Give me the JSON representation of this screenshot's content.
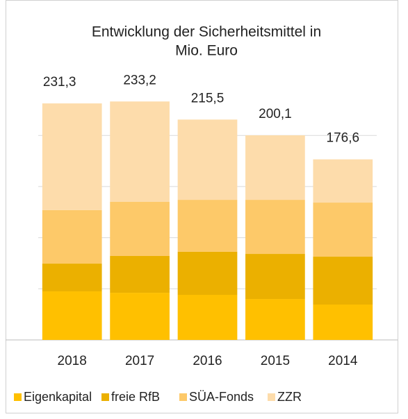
{
  "chart_data": {
    "type": "stacked_bar",
    "title": [
      "Entwicklung der Sicherheitsmittel in",
      "Mio. Euro"
    ],
    "categories": [
      "2018",
      "2017",
      "2016",
      "2015",
      "2014"
    ],
    "series": [
      {
        "name": "Eigenkapital",
        "color": "#ffc000",
        "values": [
          47.5,
          46.1,
          44.1,
          40.0,
          34.6
        ]
      },
      {
        "name": "freie RfB",
        "color": "#ebb000",
        "values": [
          27.1,
          36.0,
          42.1,
          44.1,
          46.8
        ]
      },
      {
        "name": "SÜA-Fonds",
        "color": "#fdc969",
        "values": [
          52.3,
          52.9,
          50.8,
          52.9,
          52.9
        ]
      },
      {
        "name": "ZZR",
        "color": "#fddcab",
        "values": [
          104.4,
          98.2,
          78.5,
          63.1,
          42.3
        ]
      }
    ],
    "totals": [
      231.3,
      233.2,
      215.5,
      200.1,
      176.6
    ],
    "total_labels": [
      "231,3",
      "233,2",
      "215,5",
      "200,1",
      "176,6"
    ],
    "ylim": [
      0,
      250
    ],
    "yticks": [
      0,
      50,
      100,
      150,
      200
    ],
    "grid": true
  }
}
